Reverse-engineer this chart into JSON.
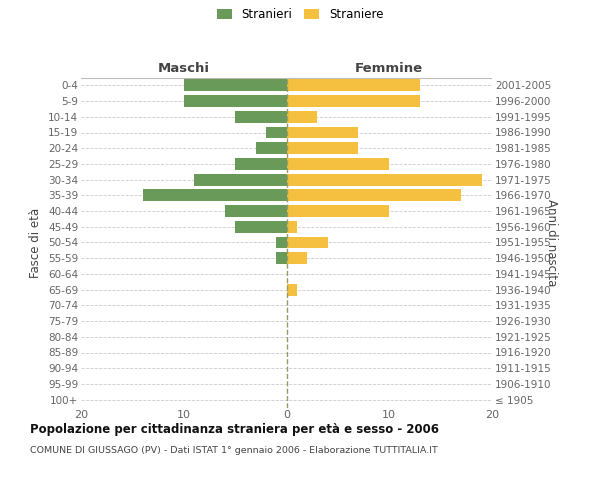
{
  "age_groups": [
    "100+",
    "95-99",
    "90-94",
    "85-89",
    "80-84",
    "75-79",
    "70-74",
    "65-69",
    "60-64",
    "55-59",
    "50-54",
    "45-49",
    "40-44",
    "35-39",
    "30-34",
    "25-29",
    "20-24",
    "15-19",
    "10-14",
    "5-9",
    "0-4"
  ],
  "birth_years": [
    "≤ 1905",
    "1906-1910",
    "1911-1915",
    "1916-1920",
    "1921-1925",
    "1926-1930",
    "1931-1935",
    "1936-1940",
    "1941-1945",
    "1946-1950",
    "1951-1955",
    "1956-1960",
    "1961-1965",
    "1966-1970",
    "1971-1975",
    "1976-1980",
    "1981-1985",
    "1986-1990",
    "1991-1995",
    "1996-2000",
    "2001-2005"
  ],
  "males": [
    0,
    0,
    0,
    0,
    0,
    0,
    0,
    0,
    0,
    1,
    1,
    5,
    6,
    14,
    9,
    5,
    3,
    2,
    5,
    10,
    10
  ],
  "females": [
    0,
    0,
    0,
    0,
    0,
    0,
    0,
    1,
    0,
    2,
    4,
    1,
    10,
    17,
    19,
    10,
    7,
    7,
    3,
    13,
    13
  ],
  "male_color": "#6a9a5a",
  "female_color": "#f5c040",
  "title": "Popolazione per cittadinanza straniera per età e sesso - 2006",
  "subtitle": "COMUNE DI GIUSSAGO (PV) - Dati ISTAT 1° gennaio 2006 - Elaborazione TUTTITALIA.IT",
  "header_left": "Maschi",
  "header_right": "Femmine",
  "ylabel_left": "Fasce di età",
  "ylabel_right": "Anni di nascita",
  "legend_male": "Stranieri",
  "legend_female": "Straniere",
  "xlim": 20,
  "background_color": "#ffffff",
  "grid_color": "#cccccc",
  "bar_height": 0.75,
  "text_color": "#666666",
  "header_color": "#444444",
  "title_color": "#111111"
}
